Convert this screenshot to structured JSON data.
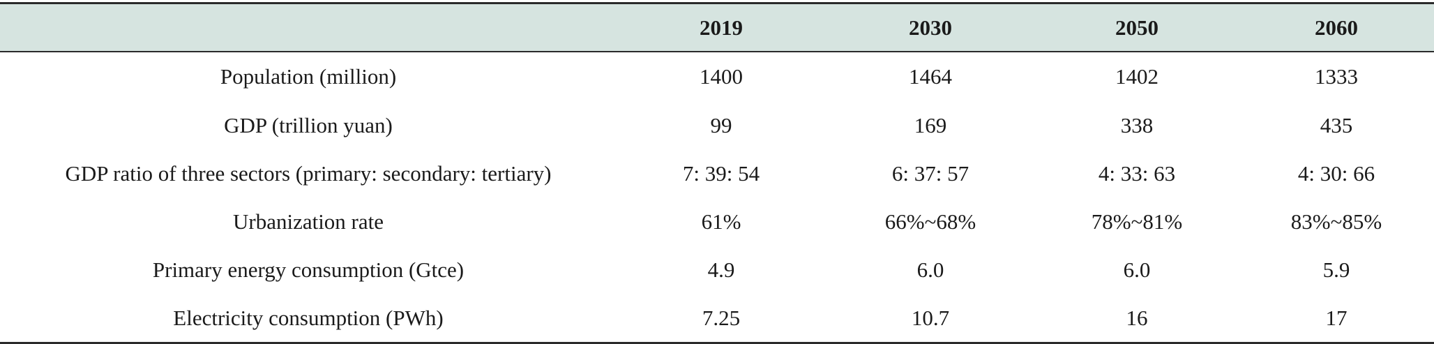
{
  "table": {
    "headers": [
      "",
      "2019",
      "2030",
      "2050",
      "2060"
    ],
    "rows": [
      [
        "Population (million)",
        "1400",
        "1464",
        "1402",
        "1333"
      ],
      [
        "GDP (trillion yuan)",
        "99",
        "169",
        "338",
        "435"
      ],
      [
        "GDP ratio of three sectors (primary: secondary: tertiary)",
        "7: 39: 54",
        "6: 37: 57",
        "4: 33: 63",
        "4: 30: 66"
      ],
      [
        "Urbanization rate",
        "61%",
        "66%~68%",
        "78%~81%",
        "83%~85%"
      ],
      [
        "Primary energy consumption (Gtce)",
        "4.9",
        "6.0",
        "6.0",
        "5.9"
      ],
      [
        "Electricity consumption (PWh)",
        "7.25",
        "10.7",
        "16",
        "17"
      ]
    ]
  },
  "colors": {
    "header_background": "#d6e4e0",
    "rule": "#2a2a2a",
    "text": "#1a1a1a"
  }
}
